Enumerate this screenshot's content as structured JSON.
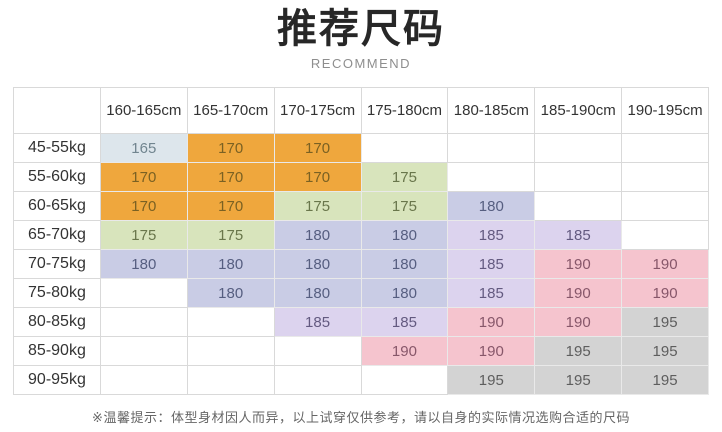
{
  "header": {
    "title": "推荐尺码",
    "subtitle": "RECOMMEND"
  },
  "table": {
    "corner_label": "",
    "columns": [
      "160-165cm",
      "165-170cm",
      "170-175cm",
      "175-180cm",
      "180-185cm",
      "185-190cm",
      "190-195cm"
    ],
    "rows": [
      {
        "label": "45-55kg",
        "cells": [
          "165",
          "170",
          "170",
          "",
          "",
          "",
          ""
        ]
      },
      {
        "label": "55-60kg",
        "cells": [
          "170",
          "170",
          "170",
          "175",
          "",
          "",
          ""
        ]
      },
      {
        "label": "60-65kg",
        "cells": [
          "170",
          "170",
          "175",
          "175",
          "180",
          "",
          ""
        ]
      },
      {
        "label": "65-70kg",
        "cells": [
          "175",
          "175",
          "180",
          "180",
          "185",
          "185",
          ""
        ]
      },
      {
        "label": "70-75kg",
        "cells": [
          "180",
          "180",
          "180",
          "180",
          "185",
          "190",
          "190"
        ]
      },
      {
        "label": "75-80kg",
        "cells": [
          "",
          "180",
          "180",
          "180",
          "185",
          "190",
          "190"
        ]
      },
      {
        "label": "80-85kg",
        "cells": [
          "",
          "",
          "185",
          "185",
          "190",
          "190",
          "195"
        ]
      },
      {
        "label": "85-90kg",
        "cells": [
          "",
          "",
          "",
          "190",
          "190",
          "195",
          "195"
        ]
      },
      {
        "label": "90-95kg",
        "cells": [
          "",
          "",
          "",
          "",
          "195",
          "195",
          "195"
        ]
      }
    ],
    "size_colors": {
      "165": {
        "bg": "#dde6ec",
        "text": "#71858f"
      },
      "170": {
        "bg": "#efa73d",
        "text": "#7a6123"
      },
      "175": {
        "bg": "#d8e4bc",
        "text": "#69764b"
      },
      "180": {
        "bg": "#c9cce5",
        "text": "#565e80"
      },
      "185": {
        "bg": "#dcd3ee",
        "text": "#635a80"
      },
      "190": {
        "bg": "#f5c4ce",
        "text": "#87576a"
      },
      "195": {
        "bg": "#d3d3d3",
        "text": "#5e5e5e"
      }
    }
  },
  "footer": {
    "note": "※温馨提示：体型身材因人而异，以上试穿仅供参考，请以自身的实际情况选购合适的尺码"
  },
  "chart_data": {
    "type": "table",
    "title": "推荐尺码",
    "subtitle": "RECOMMEND",
    "columns": [
      "160-165cm",
      "165-170cm",
      "170-175cm",
      "175-180cm",
      "180-185cm",
      "185-190cm",
      "190-195cm"
    ],
    "row_labels": [
      "45-55kg",
      "55-60kg",
      "60-65kg",
      "65-70kg",
      "70-75kg",
      "75-80kg",
      "80-85kg",
      "85-90kg",
      "90-95kg"
    ],
    "values": [
      [
        165,
        170,
        170,
        null,
        null,
        null,
        null
      ],
      [
        170,
        170,
        170,
        175,
        null,
        null,
        null
      ],
      [
        170,
        170,
        175,
        175,
        180,
        null,
        null
      ],
      [
        175,
        175,
        180,
        180,
        185,
        185,
        null
      ],
      [
        180,
        180,
        180,
        180,
        185,
        190,
        190
      ],
      [
        null,
        180,
        180,
        180,
        185,
        190,
        190
      ],
      [
        null,
        null,
        185,
        185,
        190,
        190,
        195
      ],
      [
        null,
        null,
        null,
        190,
        190,
        195,
        195
      ],
      [
        null,
        null,
        null,
        null,
        195,
        195,
        195
      ]
    ],
    "annotation": "※温馨提示：体型身材因人而异，以上试穿仅供参考，请以自身的实际情况选购合适的尺码"
  }
}
